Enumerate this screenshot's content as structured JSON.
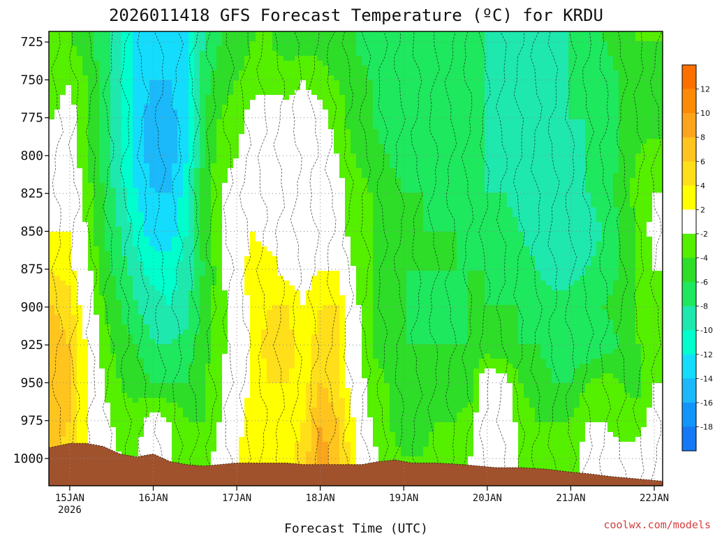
{
  "chart_data": {
    "type": "heatmap",
    "title": "2026011418 GFS Forecast Temperature (ºC) for KRDU",
    "xlabel": "Forecast Time (UTC)",
    "ylabel": "",
    "credit": "coolwx.com/models",
    "x_ticks": [
      {
        "label": "15JAN",
        "sublabel": "2026",
        "value": 0
      },
      {
        "label": "16JAN",
        "value": 1
      },
      {
        "label": "17JAN",
        "value": 2
      },
      {
        "label": "18JAN",
        "value": 3
      },
      {
        "label": "19JAN",
        "value": 4
      },
      {
        "label": "20JAN",
        "value": 5
      },
      {
        "label": "21JAN",
        "value": 6
      },
      {
        "label": "22JAN",
        "value": 7
      }
    ],
    "xlim": [
      -0.25,
      7.1
    ],
    "y_ticks": [
      "725",
      "750",
      "775",
      "800",
      "825",
      "850",
      "875",
      "900",
      "925",
      "950",
      "975",
      "1000"
    ],
    "ylim": [
      1018,
      718
    ],
    "colorbar": {
      "labels": [
        "12",
        "10",
        "8",
        "6",
        "4",
        "2",
        "-2",
        "-4",
        "-6",
        "-8",
        "-10",
        "-12",
        "-14",
        "-16",
        "-18"
      ],
      "bins": [
        {
          "lo": 12,
          "hi": 14,
          "color": "#fc7000"
        },
        {
          "lo": 10,
          "hi": 12,
          "color": "#fd8a05"
        },
        {
          "lo": 8,
          "hi": 10,
          "color": "#fca41b"
        },
        {
          "lo": 6,
          "hi": 8,
          "color": "#ffc41e"
        },
        {
          "lo": 4,
          "hi": 6,
          "color": "#ffdf1a"
        },
        {
          "lo": 2,
          "hi": 4,
          "color": "#ffff00"
        },
        {
          "lo": -2,
          "hi": 2,
          "color": "#ffffff"
        },
        {
          "lo": -4,
          "hi": -2,
          "color": "#55ef00"
        },
        {
          "lo": -6,
          "hi": -4,
          "color": "#2ddd28"
        },
        {
          "lo": -8,
          "hi": -6,
          "color": "#1ee85d"
        },
        {
          "lo": -10,
          "hi": -8,
          "color": "#1ee8ad"
        },
        {
          "lo": -12,
          "hi": -10,
          "color": "#00ffcc"
        },
        {
          "lo": -14,
          "hi": -12,
          "color": "#14dcfc"
        },
        {
          "lo": -16,
          "hi": -14,
          "color": "#1bb8fa"
        },
        {
          "lo": -18,
          "hi": -16,
          "color": "#1295fa"
        },
        {
          "lo": -20,
          "hi": -18,
          "color": "#1478f7"
        }
      ]
    },
    "terrain_color": "#a0522d",
    "surface_pressure": [
      [
        -0.25,
        993
      ],
      [
        0.0,
        990
      ],
      [
        0.2,
        990
      ],
      [
        0.4,
        992
      ],
      [
        0.6,
        997
      ],
      [
        0.8,
        999
      ],
      [
        1.0,
        997
      ],
      [
        1.2,
        1002
      ],
      [
        1.4,
        1004
      ],
      [
        1.6,
        1005
      ],
      [
        1.8,
        1004
      ],
      [
        2.0,
        1003
      ],
      [
        2.3,
        1003
      ],
      [
        2.6,
        1003
      ],
      [
        2.8,
        1004
      ],
      [
        3.0,
        1004
      ],
      [
        3.3,
        1004
      ],
      [
        3.5,
        1004
      ],
      [
        3.7,
        1002
      ],
      [
        3.9,
        1001
      ],
      [
        4.1,
        1003
      ],
      [
        4.4,
        1003
      ],
      [
        4.7,
        1004
      ],
      [
        4.9,
        1005
      ],
      [
        5.1,
        1006
      ],
      [
        5.4,
        1006
      ],
      [
        5.7,
        1007
      ],
      [
        6.0,
        1009
      ],
      [
        6.2,
        1010
      ],
      [
        6.5,
        1012
      ],
      [
        6.7,
        1013
      ],
      [
        6.9,
        1014
      ],
      [
        7.1,
        1015
      ]
    ],
    "pressure_levels": [
      725,
      750,
      775,
      800,
      825,
      850,
      875,
      900,
      925,
      950,
      975,
      1000
    ],
    "times": [
      -0.2,
      0.0,
      0.2,
      0.4,
      0.6,
      0.8,
      1.0,
      1.2,
      1.4,
      1.6,
      1.8,
      2.0,
      2.2,
      2.4,
      2.6,
      2.8,
      3.0,
      3.2,
      3.4,
      3.6,
      3.8,
      4.0,
      4.2,
      4.4,
      4.6,
      4.8,
      5.0,
      5.2,
      5.4,
      5.6,
      5.8,
      6.0,
      6.2,
      6.4,
      6.6,
      6.8,
      7.0
    ],
    "temperature_rows": [
      [
        -4,
        -4,
        -5,
        -7,
        -10,
        -13,
        -14,
        -14,
        -12,
        -8,
        -6,
        -5,
        -4,
        -4,
        -5,
        -5,
        -5,
        -6,
        -6,
        -7,
        -7,
        -7,
        -7,
        -8,
        -8,
        -8,
        -8,
        -9,
        -9,
        -9,
        -9,
        -8,
        -7,
        -6,
        -5,
        -4,
        -4
      ],
      [
        -3,
        -2,
        -4,
        -7,
        -10,
        -13,
        -14,
        -14,
        -12,
        -7,
        -5,
        -4,
        -3,
        -3,
        -3,
        -2,
        -3,
        -4,
        -5,
        -6,
        -7,
        -7,
        -7,
        -8,
        -8,
        -8,
        -8,
        -9,
        -9,
        -9,
        -9,
        -8,
        -8,
        -7,
        -6,
        -5,
        -5
      ],
      [
        -2,
        -1,
        -4,
        -7,
        -10,
        -13,
        -15,
        -15,
        -12,
        -6,
        -4,
        -3,
        -1,
        0,
        -1,
        -1,
        -1,
        -3,
        -5,
        -6,
        -7,
        -7,
        -7,
        -8,
        -8,
        -8,
        -8,
        -9,
        -9,
        -9,
        -9,
        -8,
        -8,
        -7,
        -6,
        -5,
        -5
      ],
      [
        -1,
        0,
        -4,
        -7,
        -10,
        -13,
        -15,
        -15,
        -12,
        -6,
        -3,
        -2,
        0,
        1,
        0,
        1,
        0,
        -2,
        -4,
        -5,
        -6,
        -7,
        -7,
        -7,
        -8,
        -8,
        -8,
        -9,
        -9,
        -9,
        -9,
        -9,
        -8,
        -7,
        -6,
        -4,
        -3
      ],
      [
        1,
        1,
        -3,
        -6,
        -9,
        -12,
        -14,
        -14,
        -11,
        -5,
        -2,
        -1,
        1,
        1,
        1,
        2,
        1,
        -1,
        -3,
        -4,
        -5,
        -6,
        -6,
        -7,
        -7,
        -7,
        -8,
        -8,
        -9,
        -9,
        -10,
        -9,
        -8,
        -7,
        -5,
        -3,
        -2
      ],
      [
        2,
        2,
        -2,
        -6,
        -8,
        -11,
        -13,
        -13,
        -10,
        -5,
        -2,
        1,
        2,
        1,
        1,
        1,
        1,
        -1,
        -3,
        -4,
        -5,
        -6,
        -6,
        -6,
        -6,
        -7,
        -7,
        -7,
        -8,
        -9,
        -10,
        -10,
        -9,
        -8,
        -6,
        -4,
        -1
      ],
      [
        4,
        3,
        -1,
        -5,
        -7,
        -9,
        -11,
        -11,
        -9,
        -6,
        -3,
        1,
        3,
        3,
        1,
        1,
        2,
        2,
        -2,
        -4,
        -5,
        -6,
        -6,
        -6,
        -6,
        -6,
        -6,
        -7,
        -7,
        -8,
        -9,
        -9,
        -8,
        -7,
        -6,
        -4,
        -2
      ],
      [
        6,
        5,
        0,
        -4,
        -6,
        -8,
        -9,
        -10,
        -9,
        -5,
        -3,
        0,
        3,
        4,
        4,
        2,
        4,
        4,
        -1,
        -4,
        -5,
        -6,
        -7,
        -7,
        -7,
        -6,
        -6,
        -6,
        -6,
        -7,
        -7,
        -7,
        -6,
        -6,
        -5,
        -4,
        -3
      ],
      [
        7,
        6,
        2,
        -3,
        -5,
        -6,
        -8,
        -8,
        -7,
        -5,
        -3,
        0,
        3,
        5,
        5,
        3,
        5,
        5,
        -1,
        -4,
        -5,
        -6,
        -6,
        -6,
        -6,
        -6,
        -6,
        -6,
        -6,
        -6,
        -7,
        -7,
        -8,
        -7,
        -6,
        -4,
        -3
      ],
      [
        8,
        6,
        2,
        -2,
        -4,
        -5,
        -6,
        -6,
        -6,
        -4,
        -2,
        0,
        3,
        4,
        4,
        3,
        6,
        5,
        0,
        -3,
        -4,
        -5,
        -6,
        -6,
        -5,
        -5,
        1,
        -1,
        -4,
        -5,
        -6,
        -6,
        -4,
        -3,
        -4,
        -5,
        -2
      ],
      [
        7,
        6,
        2,
        -1,
        -3,
        -3,
        -1,
        -2,
        -4,
        -4,
        -2,
        1,
        3,
        4,
        3,
        4,
        8,
        6,
        2,
        -2,
        -4,
        -5,
        -5,
        -4,
        -4,
        -3,
        1,
        0,
        -3,
        -4,
        -4,
        -4,
        -2,
        -2,
        -3,
        -3,
        -1
      ],
      [
        6,
        5,
        2,
        0,
        -2,
        -2,
        0,
        -2,
        -3,
        -3,
        -1,
        2,
        4,
        3,
        3,
        5,
        9,
        7,
        3,
        -1,
        -3,
        -4,
        -4,
        -3,
        -3,
        -2,
        2,
        1,
        -2,
        -3,
        -3,
        -3,
        -1,
        -1,
        -1,
        -1,
        0
      ]
    ]
  }
}
